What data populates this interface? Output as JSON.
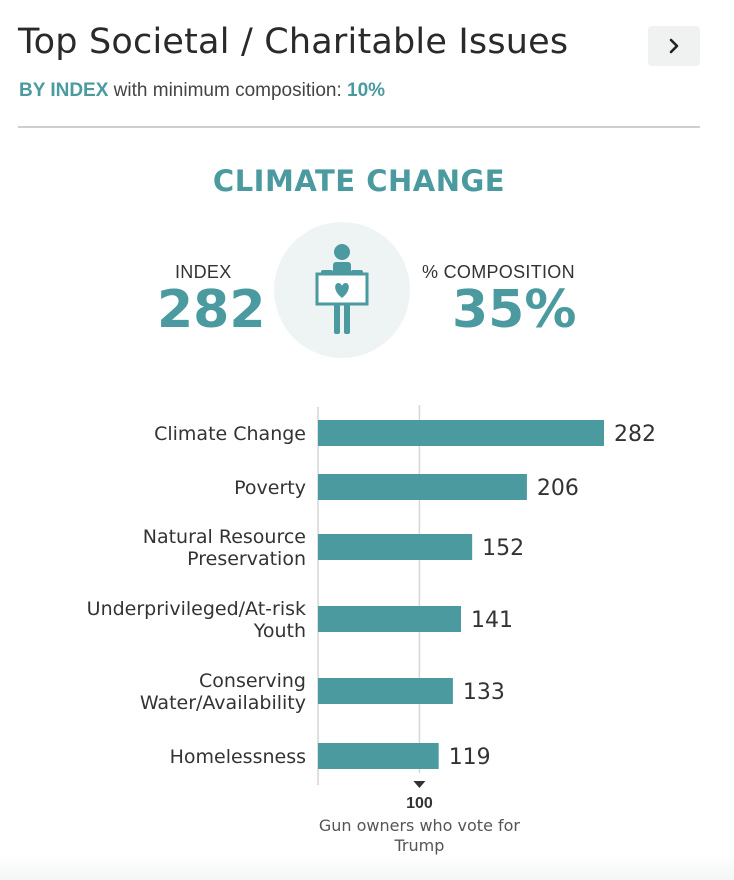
{
  "header": {
    "title": "Top Societal / Charitable Issues",
    "next_icon": "chevron-right-icon"
  },
  "subtitle": {
    "accent": "BY INDEX",
    "rest": " with minimum composition: ",
    "pct": "10%"
  },
  "feature": {
    "title": "CLIMATE CHANGE",
    "index_label": "INDEX",
    "index_value": "282",
    "composition_label": "% COMPOSITION",
    "composition_value": "35%",
    "icon": "person-holding-heart-sign-icon"
  },
  "colors": {
    "accent": "#4a9aa0",
    "bar": "#4a9aa0",
    "icon_bg": "#eef4f4"
  },
  "chart_data": {
    "type": "bar",
    "orientation": "horizontal",
    "categories": [
      [
        "Climate Change"
      ],
      [
        "Poverty"
      ],
      [
        "Natural Resource",
        "Preservation"
      ],
      [
        "Underprivileged/At-risk",
        "Youth"
      ],
      [
        "Conserving",
        "Water/Availability"
      ],
      [
        "Homelessness"
      ]
    ],
    "values": [
      282,
      206,
      152,
      141,
      133,
      119
    ],
    "xlim": [
      0,
      300
    ],
    "reference_line": {
      "value": 100,
      "label": "100",
      "caption": [
        "Gun owners who vote for",
        "Trump"
      ]
    }
  }
}
